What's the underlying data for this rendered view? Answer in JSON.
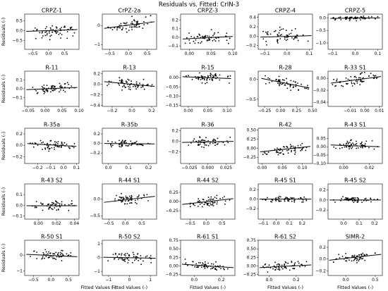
{
  "figure": {
    "title": "Residuals vs. Fitted: CrIN-3",
    "ylabel": "Residuals (-)",
    "xlabel": "Fitted Values (-)"
  },
  "chart_data": [
    {
      "type": "scatter",
      "title": "CRPZ-1",
      "xlim": [
        -0.75,
        0.95
      ],
      "ylim": [
        -0.95,
        0.85
      ],
      "xticks": [
        {
          "v": -0.5,
          "t": "−0.5"
        },
        {
          "v": 0,
          "t": "0.0"
        },
        {
          "v": 0.5,
          "t": "0.5"
        }
      ],
      "yticks": [
        {
          "v": -0.5,
          "t": "−0.5"
        },
        {
          "v": 0,
          "t": "0.0"
        },
        {
          "v": 0.5,
          "t": "0.5"
        }
      ],
      "fit": [
        [
          -0.7,
          -0.03
        ],
        [
          0.9,
          0.06
        ]
      ],
      "spread": 0.4,
      "seed": 11
    },
    {
      "type": "scatter",
      "title": "CrPZ-2a",
      "xlim": [
        -0.7,
        0.75
      ],
      "ylim": [
        -1.25,
        0.6
      ],
      "xticks": [
        {
          "v": -0.5,
          "t": "−0.5"
        },
        {
          "v": 0,
          "t": "0.0"
        },
        {
          "v": 0.5,
          "t": "0.5"
        }
      ],
      "yticks": [
        {
          "v": -1,
          "t": "−1"
        },
        {
          "v": 0,
          "t": "0"
        }
      ],
      "fit": [
        [
          -0.65,
          -0.15
        ],
        [
          0.7,
          0.2
        ]
      ],
      "spread": 0.35,
      "seed": 12
    },
    {
      "type": "scatter",
      "title": "CRPZ-3",
      "xlim": [
        -0.02,
        0.105
      ],
      "ylim": [
        -0.14,
        0.27
      ],
      "xticks": [
        {
          "v": 0,
          "t": "0.00"
        },
        {
          "v": 0.05,
          "t": "0.05"
        },
        {
          "v": 0.1,
          "t": "0.10"
        }
      ],
      "yticks": [
        {
          "v": -0.1,
          "t": "−0.1"
        },
        {
          "v": 0,
          "t": "0.0"
        },
        {
          "v": 0.1,
          "t": "0.1"
        },
        {
          "v": 0.2,
          "t": "0.2"
        }
      ],
      "fit": [
        [
          -0.015,
          -0.02
        ],
        [
          0.1,
          0.01
        ]
      ],
      "spread": 0.07,
      "seed": 13
    },
    {
      "type": "scatter",
      "title": "CRPZ-4",
      "xlim": [
        -0.13,
        0.115
      ],
      "ylim": [
        -0.28,
        0.47
      ],
      "xticks": [
        {
          "v": -0.1,
          "t": "−0.1"
        },
        {
          "v": 0,
          "t": "0.0"
        },
        {
          "v": 0.1,
          "t": "0.1"
        }
      ],
      "yticks": [
        {
          "v": -0.2,
          "t": "−0.2"
        },
        {
          "v": 0,
          "t": "0.0"
        },
        {
          "v": 0.2,
          "t": "0.2"
        },
        {
          "v": 0.4,
          "t": "0.4"
        }
      ],
      "fit": [
        [
          -0.12,
          -0.02
        ],
        [
          0.11,
          0.01
        ]
      ],
      "spread": 0.15,
      "seed": 14
    },
    {
      "type": "scatter",
      "title": "CRPZ-5",
      "xlim": [
        -0.12,
        0.12
      ],
      "ylim": [
        -1.25,
        0.15
      ],
      "xticks": [
        {
          "v": -0.1,
          "t": "−0.1"
        },
        {
          "v": 0,
          "t": "0.0"
        },
        {
          "v": 0.1,
          "t": "0.1"
        }
      ],
      "yticks": [
        {
          "v": -1,
          "t": "−1.0"
        },
        {
          "v": -0.5,
          "t": "−0.5"
        },
        {
          "v": 0,
          "t": "0.0"
        }
      ],
      "fit": [
        [
          -0.11,
          -0.02
        ],
        [
          0.11,
          0.0
        ]
      ],
      "spread": 0.08,
      "seed": 15
    },
    {
      "type": "scatter",
      "title": "R-11",
      "xlim": [
        -0.06,
        0.1
      ],
      "ylim": [
        -0.2,
        0.2
      ],
      "xticks": [
        {
          "v": -0.05,
          "t": "−0.05"
        },
        {
          "v": 0,
          "t": "0.00"
        },
        {
          "v": 0.05,
          "t": "0.05"
        },
        {
          "v": 0.1,
          "t": "0.10"
        }
      ],
      "yticks": [
        {
          "v": -0.1,
          "t": "−0.1"
        },
        {
          "v": 0,
          "t": "0.0"
        },
        {
          "v": 0.1,
          "t": "0.1"
        }
      ],
      "fit": [
        [
          -0.055,
          -0.01
        ],
        [
          0.095,
          0.015
        ]
      ],
      "spread": 0.05,
      "seed": 21
    },
    {
      "type": "scatter",
      "title": "R-13",
      "xlim": [
        -0.3,
        0.25
      ],
      "ylim": [
        -0.42,
        0.25
      ],
      "xticks": [
        {
          "v": -0.2,
          "t": "−0.2"
        },
        {
          "v": 0,
          "t": "0.0"
        },
        {
          "v": 0.2,
          "t": "0.2"
        }
      ],
      "yticks": [
        {
          "v": -0.4,
          "t": "−0.4"
        },
        {
          "v": -0.2,
          "t": "−0.2"
        },
        {
          "v": 0,
          "t": "0.0"
        },
        {
          "v": 0.2,
          "t": "0.2"
        }
      ],
      "fit": [
        [
          -0.28,
          0.05
        ],
        [
          0.23,
          -0.04
        ]
      ],
      "spread": 0.1,
      "seed": 22
    },
    {
      "type": "scatter",
      "title": "R-15",
      "xlim": [
        -0.02,
        0.12
      ],
      "ylim": [
        -0.155,
        0.035
      ],
      "xticks": [
        {
          "v": 0,
          "t": "0.00"
        },
        {
          "v": 0.05,
          "t": "0.05"
        },
        {
          "v": 0.1,
          "t": "0.10"
        }
      ],
      "yticks": [
        {
          "v": -0.15,
          "t": "−0.15"
        },
        {
          "v": -0.1,
          "t": "−0.10"
        },
        {
          "v": -0.05,
          "t": "−0.05"
        },
        {
          "v": 0,
          "t": "0.00"
        }
      ],
      "fit": [
        [
          -0.015,
          0.005
        ],
        [
          0.11,
          -0.005
        ]
      ],
      "spread": 0.03,
      "seed": 23
    },
    {
      "type": "scatter",
      "title": "R-28",
      "xlim": [
        -0.35,
        0.5
      ],
      "ylim": [
        -0.68,
        0.2
      ],
      "xticks": [
        {
          "v": -0.25,
          "t": "−0.25"
        },
        {
          "v": 0,
          "t": "0.00"
        },
        {
          "v": 0.25,
          "t": "0.25"
        },
        {
          "v": 0.5,
          "t": "0.50"
        }
      ],
      "yticks": [
        {
          "v": -0.5,
          "t": "−0.5"
        },
        {
          "v": 0,
          "t": "0.0"
        }
      ],
      "fit": [
        [
          -0.3,
          0.02
        ],
        [
          0.45,
          -0.22
        ]
      ],
      "spread": 0.12,
      "seed": 24
    },
    {
      "type": "scatter",
      "title": "R-33 S1",
      "xlim": [
        -0.025,
        0.012
      ],
      "ylim": [
        -0.047,
        0.012
      ],
      "xticks": [
        {
          "v": -0.01,
          "t": "−0.01"
        },
        {
          "v": 0,
          "t": "0.00"
        },
        {
          "v": 0.01,
          "t": "0.01"
        }
      ],
      "yticks": [
        {
          "v": -0.04,
          "t": "−0.04"
        },
        {
          "v": -0.02,
          "t": "−0.02"
        },
        {
          "v": 0,
          "t": "0.00"
        }
      ],
      "fit": [
        [
          -0.023,
          -0.008
        ],
        [
          0.011,
          0.003
        ]
      ],
      "spread": 0.01,
      "seed": 25
    },
    {
      "type": "scatter",
      "title": "R-35a",
      "xlim": [
        -0.3,
        0.12
      ],
      "ylim": [
        -0.32,
        0.3
      ],
      "xticks": [
        {
          "v": -0.2,
          "t": "−0.2"
        },
        {
          "v": -0.1,
          "t": "−0.1"
        },
        {
          "v": 0,
          "t": "0.0"
        },
        {
          "v": 0.1,
          "t": "0.1"
        }
      ],
      "yticks": [
        {
          "v": -0.2,
          "t": "−0.2"
        },
        {
          "v": 0,
          "t": "0.0"
        },
        {
          "v": 0.2,
          "t": "0.2"
        }
      ],
      "fit": [
        [
          -0.28,
          0.03
        ],
        [
          0.1,
          -0.02
        ]
      ],
      "spread": 0.08,
      "seed": 31
    },
    {
      "type": "scatter",
      "title": "R-35b",
      "xlim": [
        -0.03,
        0.24
      ],
      "ylim": [
        -0.42,
        0.32
      ],
      "xticks": [
        {
          "v": 0,
          "t": "0.0"
        },
        {
          "v": 0.1,
          "t": "0.1"
        },
        {
          "v": 0.2,
          "t": "0.2"
        }
      ],
      "yticks": [
        {
          "v": -0.2,
          "t": "−0.2"
        },
        {
          "v": 0,
          "t": "0.0"
        },
        {
          "v": 0.2,
          "t": "0.2"
        }
      ],
      "fit": [
        [
          -0.02,
          0.0
        ],
        [
          0.23,
          -0.01
        ]
      ],
      "spread": 0.06,
      "seed": 32
    },
    {
      "type": "scatter",
      "title": "R-36",
      "xlim": [
        -0.037,
        0.037
      ],
      "ylim": [
        -0.42,
        0.25
      ],
      "xticks": [
        {
          "v": -0.025,
          "t": "−0.025"
        },
        {
          "v": 0,
          "t": "0.000"
        },
        {
          "v": 0.025,
          "t": "0.025"
        }
      ],
      "yticks": [
        {
          "v": -0.2,
          "t": "−0.2"
        },
        {
          "v": 0,
          "t": "0.0"
        },
        {
          "v": 0.2,
          "t": "0.2"
        }
      ],
      "fit": [
        [
          -0.035,
          -0.02
        ],
        [
          0.035,
          0.0
        ]
      ],
      "spread": 0.09,
      "seed": 33
    },
    {
      "type": "scatter",
      "title": "R-42",
      "xlim": [
        -0.01,
        0.125
      ],
      "ylim": [
        -0.42,
        0.55
      ],
      "xticks": [
        {
          "v": 0,
          "t": "0.00"
        },
        {
          "v": 0.05,
          "t": "0.05"
        },
        {
          "v": 0.1,
          "t": "0.10"
        }
      ],
      "yticks": [
        {
          "v": -0.25,
          "t": "−0.25"
        },
        {
          "v": 0,
          "t": "0.00"
        },
        {
          "v": 0.25,
          "t": "0.25"
        },
        {
          "v": 0.5,
          "t": "0.50"
        }
      ],
      "fit": [
        [
          -0.005,
          -0.1
        ],
        [
          0.12,
          0.05
        ]
      ],
      "spread": 0.15,
      "seed": 34
    },
    {
      "type": "scatter",
      "title": "R-43 S1",
      "xlim": [
        -0.012,
        0.03
      ],
      "ylim": [
        -0.1,
        0.11
      ],
      "xticks": [
        {
          "v": 0,
          "t": "0.00"
        },
        {
          "v": 0.02,
          "t": "0.02"
        }
      ],
      "yticks": [
        {
          "v": -0.1,
          "t": "−0.10"
        },
        {
          "v": -0.05,
          "t": "−0.05"
        },
        {
          "v": 0,
          "t": "0.00"
        },
        {
          "v": 0.05,
          "t": "0.05"
        }
      ],
      "fit": [
        [
          -0.01,
          0.01
        ],
        [
          0.028,
          0.0
        ]
      ],
      "spread": 0.03,
      "seed": 35
    },
    {
      "type": "scatter",
      "title": "R-43 S2",
      "xlim": [
        -0.015,
        0.045
      ],
      "ylim": [
        -0.13,
        0.2
      ],
      "xticks": [
        {
          "v": 0,
          "t": "0.00"
        },
        {
          "v": 0.02,
          "t": "0.02"
        },
        {
          "v": 0.04,
          "t": "0.04"
        }
      ],
      "yticks": [
        {
          "v": -0.1,
          "t": "−0.1"
        },
        {
          "v": 0,
          "t": "0.0"
        },
        {
          "v": 0.1,
          "t": "0.1"
        }
      ],
      "fit": [
        [
          -0.013,
          -0.005
        ],
        [
          0.043,
          -0.005
        ]
      ],
      "spread": 0.05,
      "seed": 41
    },
    {
      "type": "scatter",
      "title": "R-44 S1",
      "xlim": [
        -0.7,
        0.95
      ],
      "ylim": [
        -0.6,
        0.45
      ],
      "xticks": [
        {
          "v": -0.5,
          "t": "−0.5"
        },
        {
          "v": 0,
          "t": "0.0"
        },
        {
          "v": 0.5,
          "t": "0.5"
        }
      ],
      "yticks": [
        {
          "v": -0.5,
          "t": "−0.5"
        },
        {
          "v": 0,
          "t": "0.0"
        }
      ],
      "fit": [
        [
          -0.65,
          -0.1
        ],
        [
          0.9,
          0.08
        ]
      ],
      "spread": 0.15,
      "seed": 42
    },
    {
      "type": "scatter",
      "title": "R-44 S2",
      "xlim": [
        -0.8,
        0.9
      ],
      "ylim": [
        -0.48,
        0.48
      ],
      "xticks": [
        {
          "v": -0.5,
          "t": "−0.5"
        },
        {
          "v": 0,
          "t": "0.0"
        },
        {
          "v": 0.5,
          "t": "0.5"
        }
      ],
      "yticks": [
        {
          "v": -0.25,
          "t": "−0.25"
        },
        {
          "v": 0,
          "t": "0.00"
        },
        {
          "v": 0.25,
          "t": "0.25"
        }
      ],
      "fit": [
        [
          -0.75,
          -0.08
        ],
        [
          0.85,
          0.08
        ]
      ],
      "spread": 0.12,
      "seed": 43
    },
    {
      "type": "scatter",
      "title": "R-45 S1",
      "xlim": [
        -0.14,
        0.28
      ],
      "ylim": [
        -0.42,
        0.32
      ],
      "xticks": [
        {
          "v": -0.1,
          "t": "−0.1"
        },
        {
          "v": 0,
          "t": "0.0"
        },
        {
          "v": 0.1,
          "t": "0.1"
        },
        {
          "v": 0.2,
          "t": "0.2"
        }
      ],
      "yticks": [
        {
          "v": -0.2,
          "t": "−0.2"
        },
        {
          "v": 0,
          "t": "0.0"
        },
        {
          "v": 0.2,
          "t": "0.2"
        }
      ],
      "fit": [
        [
          -0.13,
          0.0
        ],
        [
          0.27,
          0.0
        ]
      ],
      "spread": 0.06,
      "seed": 44
    },
    {
      "type": "scatter",
      "title": "R-45 S2",
      "xlim": [
        -0.1,
        0.25
      ],
      "ylim": [
        -0.38,
        0.32
      ],
      "xticks": [
        {
          "v": 0,
          "t": "0.0"
        },
        {
          "v": 0.1,
          "t": "0.1"
        },
        {
          "v": 0.2,
          "t": "0.2"
        }
      ],
      "yticks": [
        {
          "v": -0.2,
          "t": "−0.2"
        },
        {
          "v": 0,
          "t": "0.0"
        },
        {
          "v": 0.2,
          "t": "0.2"
        }
      ],
      "fit": [
        [
          -0.09,
          0.0
        ],
        [
          0.24,
          0.0
        ]
      ],
      "spread": 0.06,
      "seed": 45
    },
    {
      "type": "scatter",
      "title": "R-50 S1",
      "xlim": [
        -0.75,
        0.8
      ],
      "ylim": [
        -1.3,
        0.95
      ],
      "xticks": [
        {
          "v": -0.5,
          "t": "−0.5"
        },
        {
          "v": 0,
          "t": "0.0"
        },
        {
          "v": 0.5,
          "t": "0.5"
        }
      ],
      "yticks": [
        {
          "v": -1,
          "t": "−1"
        },
        {
          "v": 0,
          "t": "0"
        }
      ],
      "fit": [
        [
          -0.7,
          0.05
        ],
        [
          0.75,
          -0.1
        ]
      ],
      "spread": 0.35,
      "seed": 51
    },
    {
      "type": "scatter",
      "title": "R-50 S2",
      "xlim": [
        -1.3,
        1.3
      ],
      "ylim": [
        -1.3,
        1.25
      ],
      "xticks": [
        {
          "v": -1,
          "t": "−1"
        },
        {
          "v": 0,
          "t": "0"
        },
        {
          "v": 1,
          "t": "1"
        }
      ],
      "yticks": [
        {
          "v": -1,
          "t": "−1"
        },
        {
          "v": 0,
          "t": "0"
        },
        {
          "v": 1,
          "t": "1"
        }
      ],
      "fit": [
        [
          -1.25,
          0.02
        ],
        [
          1.25,
          -0.05
        ]
      ],
      "spread": 0.4,
      "seed": 52
    },
    {
      "type": "scatter",
      "title": "R-61 S1",
      "xlim": [
        -0.1,
        0.3
      ],
      "ylim": [
        -0.28,
        0.75
      ],
      "xticks": [
        {
          "v": 0,
          "t": "0.0"
        },
        {
          "v": 0.2,
          "t": "0.2"
        }
      ],
      "yticks": [
        {
          "v": -0.25,
          "t": "−0.25"
        },
        {
          "v": 0,
          "t": "0.00"
        },
        {
          "v": 0.25,
          "t": "0.25"
        },
        {
          "v": 0.5,
          "t": "0.50"
        },
        {
          "v": 0.75,
          "t": "0.75"
        }
      ],
      "fit": [
        [
          -0.09,
          0.05
        ],
        [
          0.29,
          -0.05
        ]
      ],
      "spread": 0.12,
      "seed": 53
    },
    {
      "type": "scatter",
      "title": "R-61 S2",
      "xlim": [
        -0.08,
        0.32
      ],
      "ylim": [
        -0.28,
        0.75
      ],
      "xticks": [
        {
          "v": 0,
          "t": "0.0"
        },
        {
          "v": 0.2,
          "t": "0.2"
        }
      ],
      "yticks": [
        {
          "v": -0.25,
          "t": "−0.25"
        },
        {
          "v": 0,
          "t": "0.00"
        },
        {
          "v": 0.25,
          "t": "0.25"
        },
        {
          "v": 0.5,
          "t": "0.50"
        },
        {
          "v": 0.75,
          "t": "0.75"
        }
      ],
      "fit": [
        [
          -0.07,
          -0.05
        ],
        [
          0.31,
          0.03
        ]
      ],
      "spread": 0.12,
      "seed": 54
    },
    {
      "type": "scatter",
      "title": "SIMR-2",
      "xlim": [
        -0.3,
        0.62
      ],
      "ylim": [
        -0.28,
        0.32
      ],
      "xticks": [
        {
          "v": 0,
          "t": "0.0"
        },
        {
          "v": 0.5,
          "t": "0.5"
        }
      ],
      "yticks": [
        {
          "v": -0.2,
          "t": "−0.2"
        },
        {
          "v": 0,
          "t": "0.0"
        },
        {
          "v": 0.2,
          "t": "0.2"
        }
      ],
      "fit": [
        [
          -0.28,
          -0.02
        ],
        [
          0.6,
          0.08
        ]
      ],
      "spread": 0.07,
      "seed": 55
    }
  ]
}
